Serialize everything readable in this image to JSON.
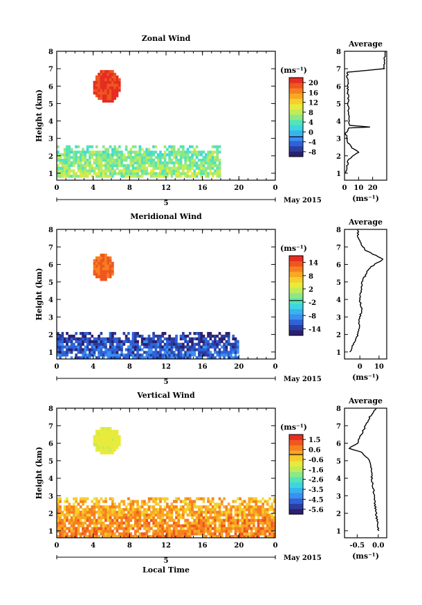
{
  "chart_data": [
    {
      "type": "heatmap",
      "title": "Zonal Wind",
      "ylabel": "Height (km)",
      "xlim": [
        0,
        24
      ],
      "ylim": [
        0.6,
        8
      ],
      "xticks": [
        "0",
        "4",
        "8",
        "12",
        "16",
        "20",
        "0"
      ],
      "yticks": [
        "1",
        "2",
        "3",
        "4",
        "5",
        "6",
        "7",
        "8"
      ],
      "day_label": "5",
      "date_label": "May 2015",
      "colorbar": {
        "unit": "(ms⁻¹)",
        "range": [
          -8,
          24
        ],
        "ticks": [
          "20",
          "16",
          "12",
          "8",
          "4",
          "0",
          "-4",
          "-8"
        ],
        "colors": [
          "#2c1f6e",
          "#2b3ea0",
          "#2f62d8",
          "#3b8ff0",
          "#37b4ee",
          "#3dd6e0",
          "#56e3b8",
          "#8de886",
          "#c1ec5a",
          "#e8eb3c",
          "#f7cf2c",
          "#f9a823",
          "#f6801f",
          "#ef5620",
          "#e52d22"
        ]
      },
      "features": [
        {
          "label": "upper blob",
          "time": [
            4,
            6.8
          ],
          "height": [
            5.2,
            6.9
          ],
          "value": 22
        },
        {
          "label": "lower layer",
          "time": [
            0,
            18
          ],
          "height": [
            0.8,
            2.6
          ],
          "value": 8
        }
      ],
      "average": {
        "title": "Average",
        "xlabel": "(ms⁻¹)",
        "xlim": [
          0,
          30
        ],
        "xticks": [
          "0",
          "10",
          "20"
        ],
        "profile": [
          [
            1,
            0.5
          ],
          [
            1.5,
            2
          ],
          [
            1.8,
            3
          ],
          [
            2,
            6
          ],
          [
            2.2,
            10
          ],
          [
            2.4,
            6
          ],
          [
            2.8,
            2
          ],
          [
            3.3,
            1
          ],
          [
            3.6,
            3
          ],
          [
            3.65,
            18
          ],
          [
            3.75,
            4
          ],
          [
            4,
            3
          ],
          [
            6.8,
            2
          ],
          [
            6.95,
            22
          ],
          [
            7,
            28
          ],
          [
            8,
            29
          ]
        ]
      }
    },
    {
      "type": "heatmap",
      "title": "Meridional Wind",
      "ylabel": "Height (km)",
      "xlim": [
        0,
        24
      ],
      "ylim": [
        0.6,
        8
      ],
      "xticks": [
        "0",
        "4",
        "8",
        "12",
        "16",
        "20",
        "0"
      ],
      "yticks": [
        "1",
        "2",
        "3",
        "4",
        "5",
        "6",
        "7",
        "8"
      ],
      "day_label": "5",
      "date_label": "May 2015",
      "colorbar": {
        "unit": "(ms⁻¹)",
        "range": [
          -14,
          18
        ],
        "ticks": [
          "14",
          "8",
          "2",
          "-2",
          "-8",
          "-14"
        ],
        "colors": [
          "#2c1f6e",
          "#2b3ea0",
          "#2f62d8",
          "#3b8ff0",
          "#37b4ee",
          "#3dd6e0",
          "#56e3b8",
          "#8de886",
          "#c1ec5a",
          "#e8eb3c",
          "#f7cf2c",
          "#f9a823",
          "#f6801f",
          "#ef5620",
          "#e52d22"
        ]
      },
      "features": [
        {
          "label": "upper blob",
          "time": [
            4.2,
            6.2
          ],
          "height": [
            5.2,
            6.6
          ],
          "value": 14
        },
        {
          "label": "lower layer",
          "time": [
            0,
            20
          ],
          "height": [
            0.7,
            2
          ],
          "value": -10
        }
      ],
      "average": {
        "title": "Average",
        "xlabel": "(ms⁻¹)",
        "xlim": [
          -8,
          14
        ],
        "xticks": [
          "0",
          "10"
        ],
        "profile": [
          [
            1,
            -5
          ],
          [
            1.5,
            -3
          ],
          [
            2,
            -1
          ],
          [
            3,
            0
          ],
          [
            3.5,
            1
          ],
          [
            4,
            0
          ],
          [
            5,
            1
          ],
          [
            5.4,
            3
          ],
          [
            5.8,
            5
          ],
          [
            6.3,
            12
          ],
          [
            6.8,
            3
          ],
          [
            7.5,
            -1
          ],
          [
            8,
            -1
          ]
        ]
      }
    },
    {
      "type": "heatmap",
      "title": "Vertical Wind",
      "ylabel": "Height (km)",
      "xlabel": "Local Time",
      "xlim": [
        0,
        24
      ],
      "ylim": [
        0.6,
        8
      ],
      "xticks": [
        "0",
        "4",
        "8",
        "12",
        "16",
        "20",
        "0"
      ],
      "yticks": [
        "1",
        "2",
        "3",
        "4",
        "5",
        "6",
        "7",
        "8"
      ],
      "day_label": "5",
      "date_label": "May 2015",
      "colorbar": {
        "unit": "(ms⁻¹)",
        "range": [
          -6,
          2
        ],
        "ticks": [
          "1.5",
          "0.6",
          "-0.6",
          "-1.6",
          "-2.6",
          "-3.5",
          "-4.5",
          "-5.6"
        ],
        "colors": [
          "#2c1f6e",
          "#2b3ea0",
          "#2f62d8",
          "#3b8ff0",
          "#37b4ee",
          "#3dd6e0",
          "#56e3b8",
          "#8de886",
          "#c1ec5a",
          "#e8eb3c",
          "#f7cf2c",
          "#f9a823",
          "#f6801f",
          "#ef5620",
          "#e52d22"
        ]
      },
      "features": [
        {
          "label": "upper blob",
          "time": [
            4.2,
            7
          ],
          "height": [
            5.4,
            6.8
          ],
          "value": -1
        },
        {
          "label": "lower layer",
          "time": [
            0,
            24
          ],
          "height": [
            0.6,
            2.8
          ],
          "value": 0.3
        }
      ],
      "average": {
        "title": "Average",
        "xlabel": "(ms⁻¹)",
        "xlim": [
          -0.8,
          0.2
        ],
        "xticks": [
          "-0.5",
          "0.0"
        ],
        "profile": [
          [
            1,
            0
          ],
          [
            2,
            -0.05
          ],
          [
            3,
            -0.1
          ],
          [
            4,
            -0.15
          ],
          [
            5,
            -0.2
          ],
          [
            5.5,
            -0.4
          ],
          [
            5.7,
            -0.7
          ],
          [
            6,
            -0.5
          ],
          [
            6.5,
            -0.4
          ],
          [
            7,
            -0.3
          ],
          [
            7.5,
            -0.2
          ],
          [
            8,
            -0.05
          ]
        ]
      }
    }
  ]
}
